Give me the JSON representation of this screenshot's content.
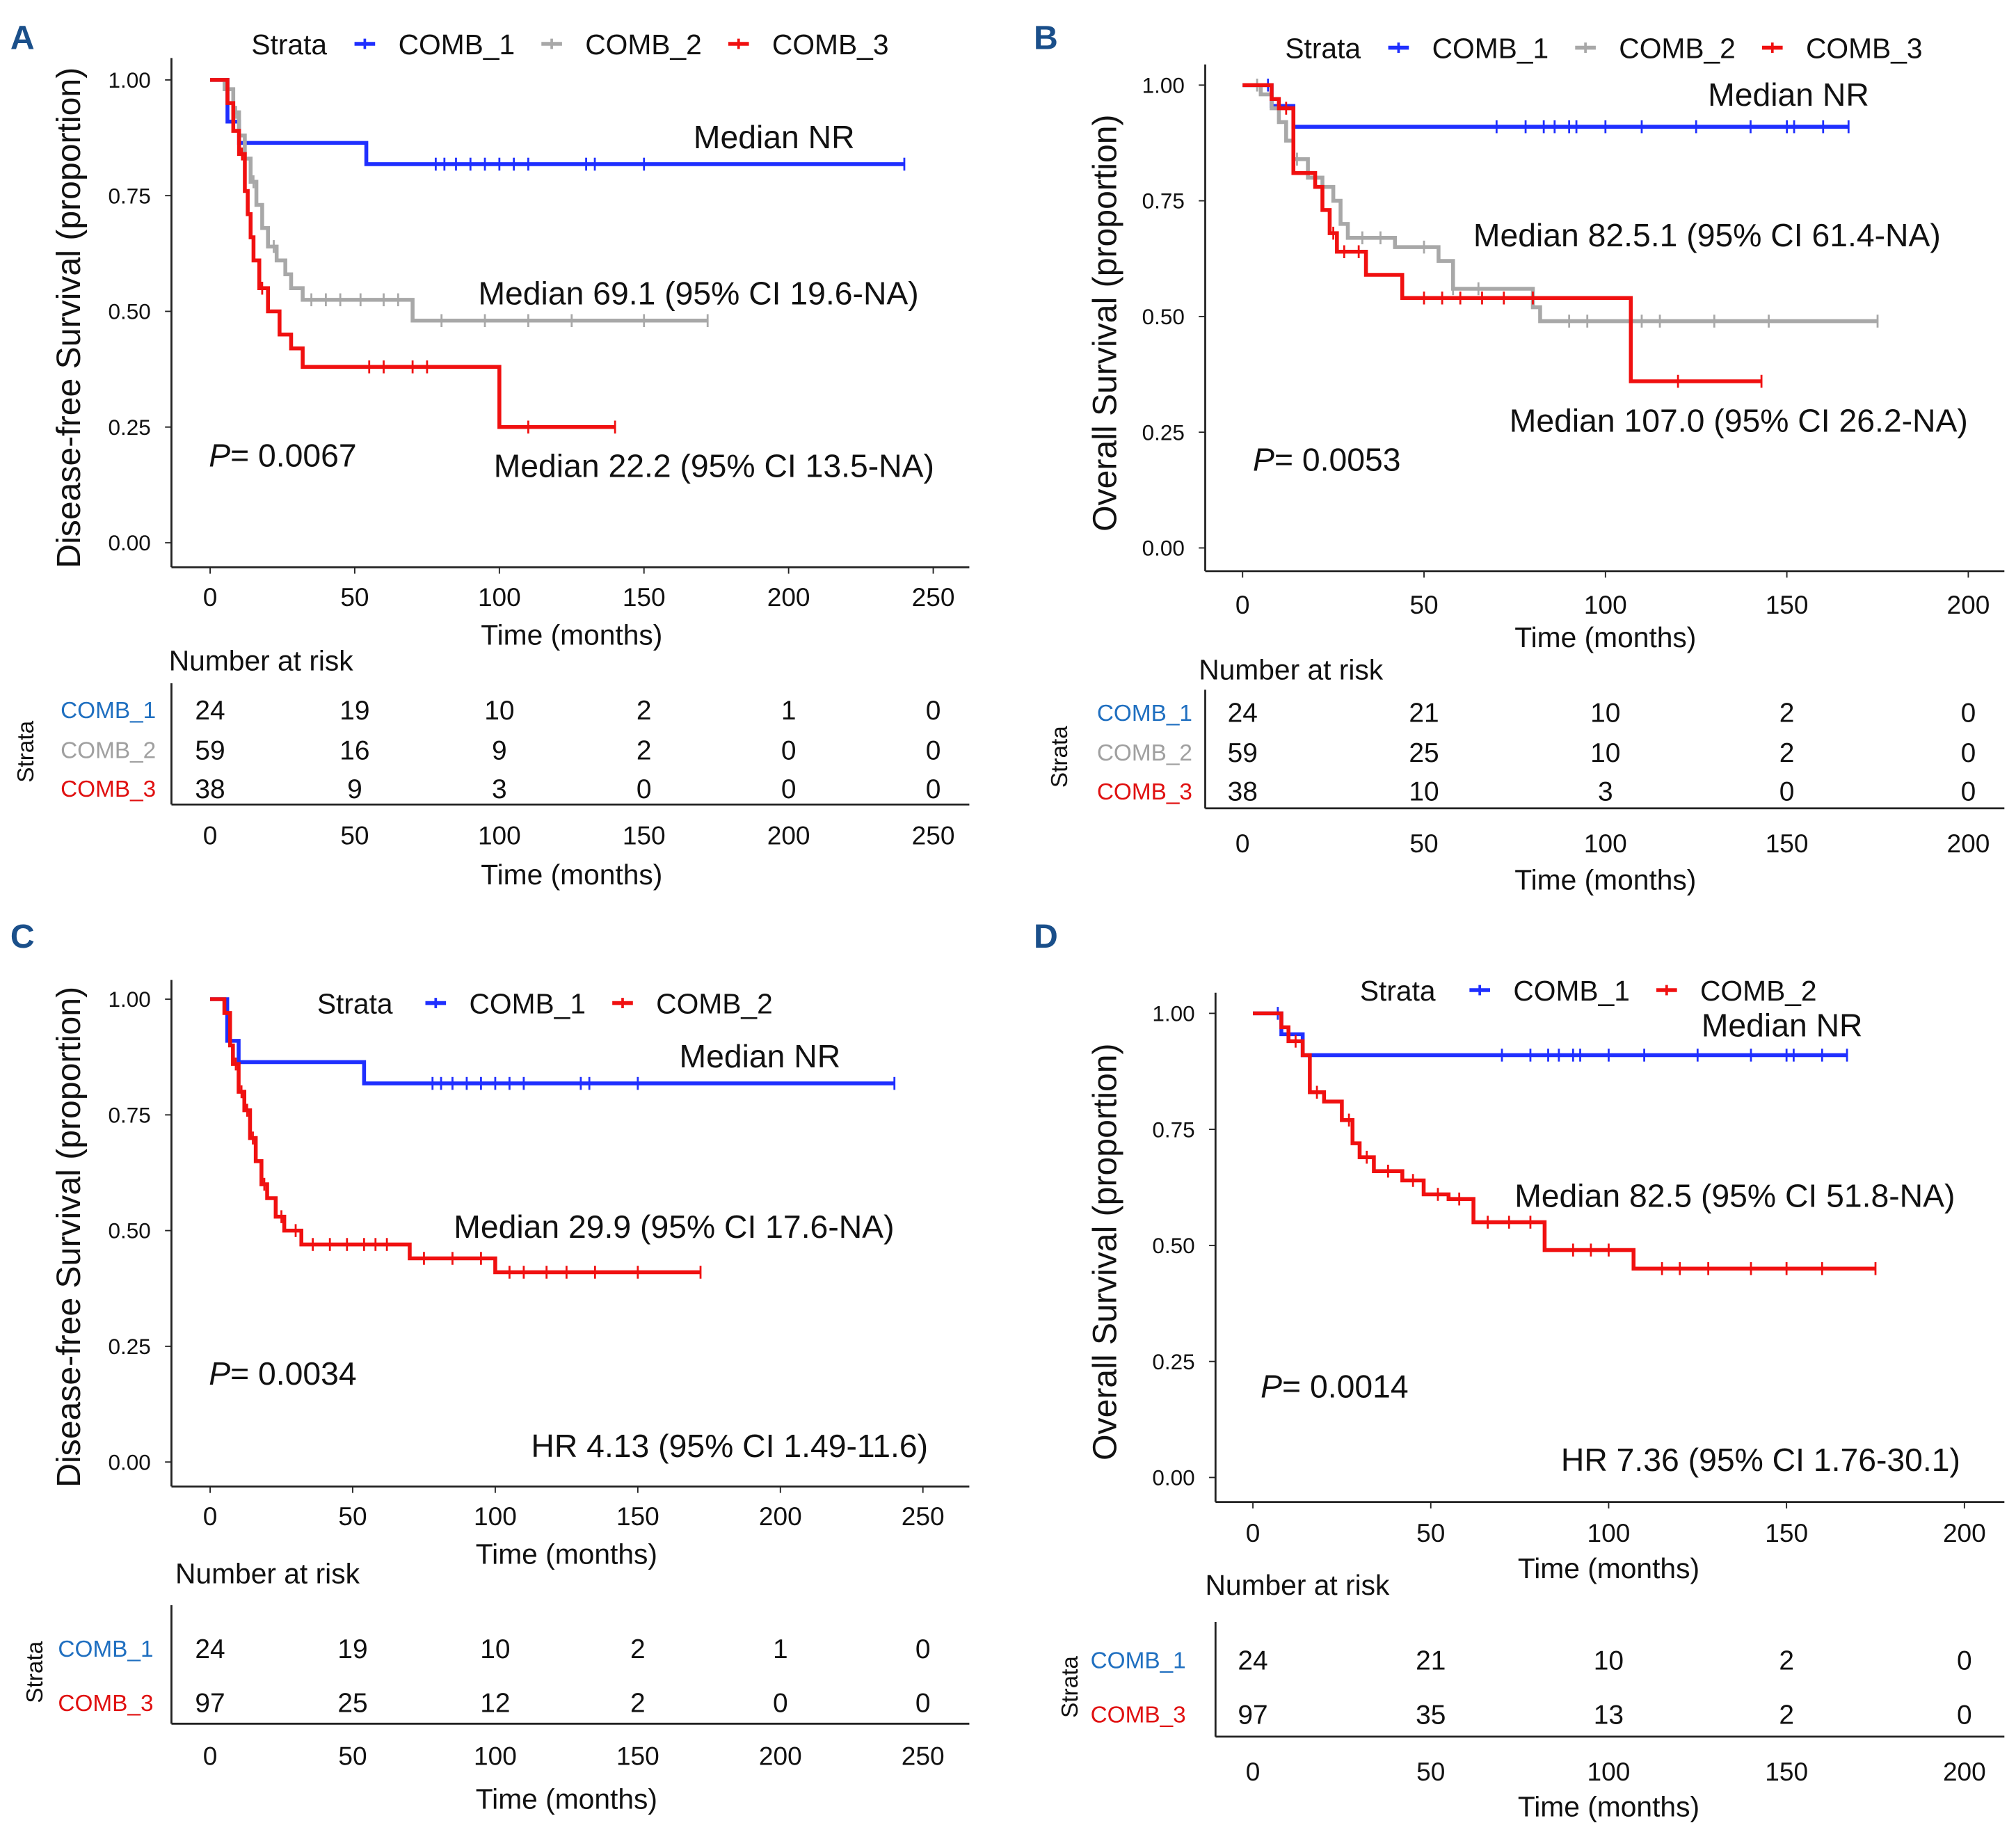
{
  "colors": {
    "COMB_1": "#1f2fff",
    "COMB_2": "#a8a8a8",
    "COMB_3": "#f01010",
    "table_COMB_1": "#1f6fc0",
    "table_COMB_2": "#a0a0a0",
    "table_COMB_3": "#e01010",
    "panel_letter": "#1a4f8a"
  },
  "chart_data": [
    {
      "panel": "A",
      "type": "line",
      "step": true,
      "ylabel": "Disease-free Survival (proportion)",
      "xlabel": "Time (months)",
      "xlim": [
        0,
        250
      ],
      "ylim": [
        0,
        1
      ],
      "xticks": [
        0,
        50,
        100,
        150,
        200,
        250
      ],
      "yticks": [
        "0.00",
        "0.25",
        "0.50",
        "0.75",
        "1.00"
      ],
      "legend_title": "Strata",
      "legend_position": "top",
      "series": [
        {
          "name": "COMB_1",
          "color_key": "COMB_1",
          "end": 240,
          "steps": [
            [
              6,
              0.91
            ],
            [
              10,
              0.864
            ],
            [
              54,
              0.818
            ]
          ],
          "censored": [
            78,
            81,
            85,
            90,
            95,
            100,
            105,
            110,
            130,
            133,
            150,
            240
          ]
        },
        {
          "name": "COMB_2",
          "color_key": "COMB_2",
          "end": 172,
          "steps": [
            [
              5,
              0.98
            ],
            [
              8,
              0.93
            ],
            [
              10,
              0.88
            ],
            [
              12,
              0.83
            ],
            [
              14,
              0.78
            ],
            [
              16,
              0.73
            ],
            [
              18,
              0.68
            ],
            [
              20,
              0.64
            ],
            [
              23,
              0.61
            ],
            [
              26,
              0.58
            ],
            [
              28,
              0.55
            ],
            [
              32,
              0.525
            ],
            [
              70,
              0.48
            ]
          ],
          "censored": [
            9,
            15,
            22,
            35,
            40,
            45,
            52,
            60,
            65,
            80,
            95,
            110,
            125,
            150,
            172
          ]
        },
        {
          "name": "COMB_3",
          "color_key": "COMB_3",
          "end": 140,
          "steps": [
            [
              6,
              0.95
            ],
            [
              8,
              0.89
            ],
            [
              10,
              0.84
            ],
            [
              12,
              0.76
            ],
            [
              13,
              0.71
            ],
            [
              14,
              0.66
            ],
            [
              15,
              0.61
            ],
            [
              17,
              0.55
            ],
            [
              20,
              0.5
            ],
            [
              24,
              0.45
            ],
            [
              28,
              0.42
            ],
            [
              32,
              0.38
            ],
            [
              100,
              0.25
            ]
          ],
          "censored": [
            11,
            18,
            55,
            60,
            70,
            75,
            110,
            140
          ]
        }
      ],
      "annotations": [
        "Median NR",
        "Median 69.1 (95% CI 19.6-NA)",
        "Median 22.2 (95% CI 13.5-NA)",
        "P",
        "= 0.0067"
      ],
      "risk_table": {
        "title": "Number at risk",
        "strata_label": "Strata",
        "times": [
          0,
          50,
          100,
          150,
          200,
          250
        ],
        "rows": [
          {
            "label": "COMB_1",
            "color_key": "table_COMB_1",
            "values": [
              24,
              19,
              10,
              2,
              1,
              0
            ]
          },
          {
            "label": "COMB_2",
            "color_key": "table_COMB_2",
            "values": [
              59,
              16,
              9,
              2,
              0,
              0
            ]
          },
          {
            "label": "COMB_3",
            "color_key": "table_COMB_3",
            "values": [
              38,
              9,
              3,
              0,
              0,
              0
            ]
          }
        ]
      }
    },
    {
      "panel": "B",
      "type": "line",
      "step": true,
      "ylabel": "Overall Survival (proportion)",
      "xlabel": "Time (months)",
      "xlim": [
        0,
        200
      ],
      "ylim": [
        0,
        1
      ],
      "xticks": [
        0,
        50,
        100,
        150,
        200
      ],
      "yticks": [
        "0.00",
        "0.25",
        "0.50",
        "0.75",
        "1.00"
      ],
      "legend_title": "Strata",
      "legend_position": "top",
      "series": [
        {
          "name": "COMB_1",
          "color_key": "COMB_1",
          "end": 167,
          "steps": [
            [
              8,
              0.955
            ],
            [
              14,
              0.91
            ]
          ],
          "censored": [
            7,
            70,
            78,
            83,
            86,
            90,
            92,
            100,
            110,
            125,
            140,
            150,
            152,
            160,
            167
          ]
        },
        {
          "name": "COMB_2",
          "color_key": "COMB_2",
          "end": 175,
          "steps": [
            [
              5,
              0.98
            ],
            [
              8,
              0.95
            ],
            [
              10,
              0.92
            ],
            [
              12,
              0.88
            ],
            [
              14,
              0.84
            ],
            [
              18,
              0.8
            ],
            [
              22,
              0.78
            ],
            [
              25,
              0.75
            ],
            [
              27,
              0.7
            ],
            [
              29,
              0.67
            ],
            [
              42,
              0.65
            ],
            [
              54,
              0.62
            ],
            [
              58,
              0.56
            ],
            [
              80,
              0.52
            ],
            [
              82,
              0.49
            ]
          ],
          "censored": [
            4,
            15,
            33,
            38,
            50,
            58,
            65,
            90,
            95,
            110,
            115,
            130,
            145,
            175
          ]
        },
        {
          "name": "COMB_3",
          "color_key": "COMB_3",
          "end": 143,
          "steps": [
            [
              8,
              0.97
            ],
            [
              10,
              0.95
            ],
            [
              14,
              0.81
            ],
            [
              20,
              0.78
            ],
            [
              22,
              0.73
            ],
            [
              24,
              0.68
            ],
            [
              26,
              0.64
            ],
            [
              34,
              0.59
            ],
            [
              44,
              0.54
            ],
            [
              107,
              0.36
            ]
          ],
          "censored": [
            12,
            25,
            28,
            32,
            50,
            55,
            60,
            66,
            72,
            80,
            120,
            143
          ]
        }
      ],
      "annotations": [
        "Median NR",
        "Median 82.5.1 (95% CI 61.4-NA)",
        "Median 107.0 (95% CI 26.2-NA)",
        "P",
        "= 0.0053"
      ],
      "risk_table": {
        "title": "Number at risk",
        "strata_label": "Strata",
        "times": [
          0,
          50,
          100,
          150,
          200
        ],
        "rows": [
          {
            "label": "COMB_1",
            "color_key": "table_COMB_1",
            "values": [
              24,
              21,
              10,
              2,
              0
            ]
          },
          {
            "label": "COMB_2",
            "color_key": "table_COMB_2",
            "values": [
              59,
              25,
              10,
              2,
              0
            ]
          },
          {
            "label": "COMB_3",
            "color_key": "table_COMB_3",
            "values": [
              38,
              10,
              3,
              0,
              0
            ]
          }
        ]
      }
    },
    {
      "panel": "C",
      "type": "line",
      "step": true,
      "ylabel": "Disease-free Survival (proportion)",
      "xlabel": "Time (months)",
      "xlim": [
        0,
        250
      ],
      "ylim": [
        0,
        1
      ],
      "xticks": [
        0,
        50,
        100,
        150,
        200,
        250
      ],
      "yticks": [
        "0.00",
        "0.25",
        "0.50",
        "0.75",
        "1.00"
      ],
      "legend_title": "Strata",
      "legend_position": "top",
      "series": [
        {
          "name": "COMB_1",
          "color_key": "COMB_1",
          "end": 240,
          "steps": [
            [
              6,
              0.91
            ],
            [
              10,
              0.864
            ],
            [
              54,
              0.818
            ]
          ],
          "censored": [
            78,
            81,
            85,
            90,
            95,
            100,
            105,
            110,
            130,
            133,
            150,
            240
          ]
        },
        {
          "name": "COMB_2",
          "color_key": "COMB_3",
          "end": 172,
          "steps": [
            [
              5,
              0.97
            ],
            [
              7,
              0.9
            ],
            [
              8,
              0.86
            ],
            [
              10,
              0.8
            ],
            [
              12,
              0.76
            ],
            [
              14,
              0.7
            ],
            [
              16,
              0.65
            ],
            [
              18,
              0.6
            ],
            [
              20,
              0.57
            ],
            [
              23,
              0.53
            ],
            [
              26,
              0.5
            ],
            [
              32,
              0.47
            ],
            [
              70,
              0.44
            ],
            [
              100,
              0.41
            ]
          ],
          "censored": [
            9,
            11,
            13,
            15,
            19,
            25,
            30,
            36,
            42,
            48,
            54,
            58,
            62,
            75,
            85,
            95,
            105,
            110,
            118,
            125,
            135,
            150,
            172
          ]
        }
      ],
      "annotations": [
        "Median NR",
        "Median 29.9 (95% CI 17.6-NA)",
        "P",
        "= 0.0034",
        "HR 4.13 (95% CI 1.49-11.6)"
      ],
      "risk_table": {
        "title": "Number at risk",
        "strata_label": "Strata",
        "times": [
          0,
          50,
          100,
          150,
          200,
          250
        ],
        "rows": [
          {
            "label": "COMB_1",
            "color_key": "table_COMB_1",
            "values": [
              24,
              19,
              10,
              2,
              1,
              0
            ]
          },
          {
            "label": "COMB_3",
            "color_key": "table_COMB_3",
            "values": [
              97,
              25,
              12,
              2,
              0,
              0
            ]
          }
        ]
      }
    },
    {
      "panel": "D",
      "type": "line",
      "step": true,
      "ylabel": "Overall Survival (proportion)",
      "xlabel": "Time (months)",
      "xlim": [
        0,
        200
      ],
      "ylim": [
        0,
        1
      ],
      "xticks": [
        0,
        50,
        100,
        150,
        200
      ],
      "yticks": [
        "0.00",
        "0.25",
        "0.50",
        "0.75",
        "1.00"
      ],
      "legend_title": "Strata",
      "legend_position": "top",
      "series": [
        {
          "name": "COMB_1",
          "color_key": "COMB_1",
          "end": 167,
          "steps": [
            [
              8,
              0.955
            ],
            [
              14,
              0.91
            ]
          ],
          "censored": [
            7,
            70,
            78,
            83,
            86,
            90,
            92,
            100,
            110,
            125,
            140,
            150,
            152,
            160,
            167
          ]
        },
        {
          "name": "COMB_2",
          "color_key": "COMB_3",
          "end": 175,
          "steps": [
            [
              8,
              0.97
            ],
            [
              10,
              0.94
            ],
            [
              14,
              0.91
            ],
            [
              16,
              0.83
            ],
            [
              20,
              0.81
            ],
            [
              25,
              0.77
            ],
            [
              28,
              0.72
            ],
            [
              30,
              0.69
            ],
            [
              34,
              0.66
            ],
            [
              42,
              0.64
            ],
            [
              48,
              0.61
            ],
            [
              55,
              0.6
            ],
            [
              62,
              0.55
            ],
            [
              82,
              0.49
            ],
            [
              107,
              0.45
            ]
          ],
          "censored": [
            12,
            18,
            27,
            32,
            38,
            45,
            52,
            58,
            66,
            72,
            78,
            90,
            95,
            100,
            115,
            120,
            128,
            140,
            150,
            160,
            175
          ]
        }
      ],
      "annotations": [
        "Median NR",
        "Median 82.5 (95% CI 51.8-NA)",
        "P",
        "= 0.0014",
        "HR 7.36 (95% CI 1.76-30.1)"
      ],
      "risk_table": {
        "title": "Number at risk",
        "strata_label": "Strata",
        "times": [
          0,
          50,
          100,
          150,
          200
        ],
        "rows": [
          {
            "label": "COMB_1",
            "color_key": "table_COMB_1",
            "values": [
              24,
              21,
              10,
              2,
              0
            ]
          },
          {
            "label": "COMB_3",
            "color_key": "table_COMB_3",
            "values": [
              97,
              35,
              13,
              2,
              0
            ]
          }
        ]
      }
    }
  ]
}
